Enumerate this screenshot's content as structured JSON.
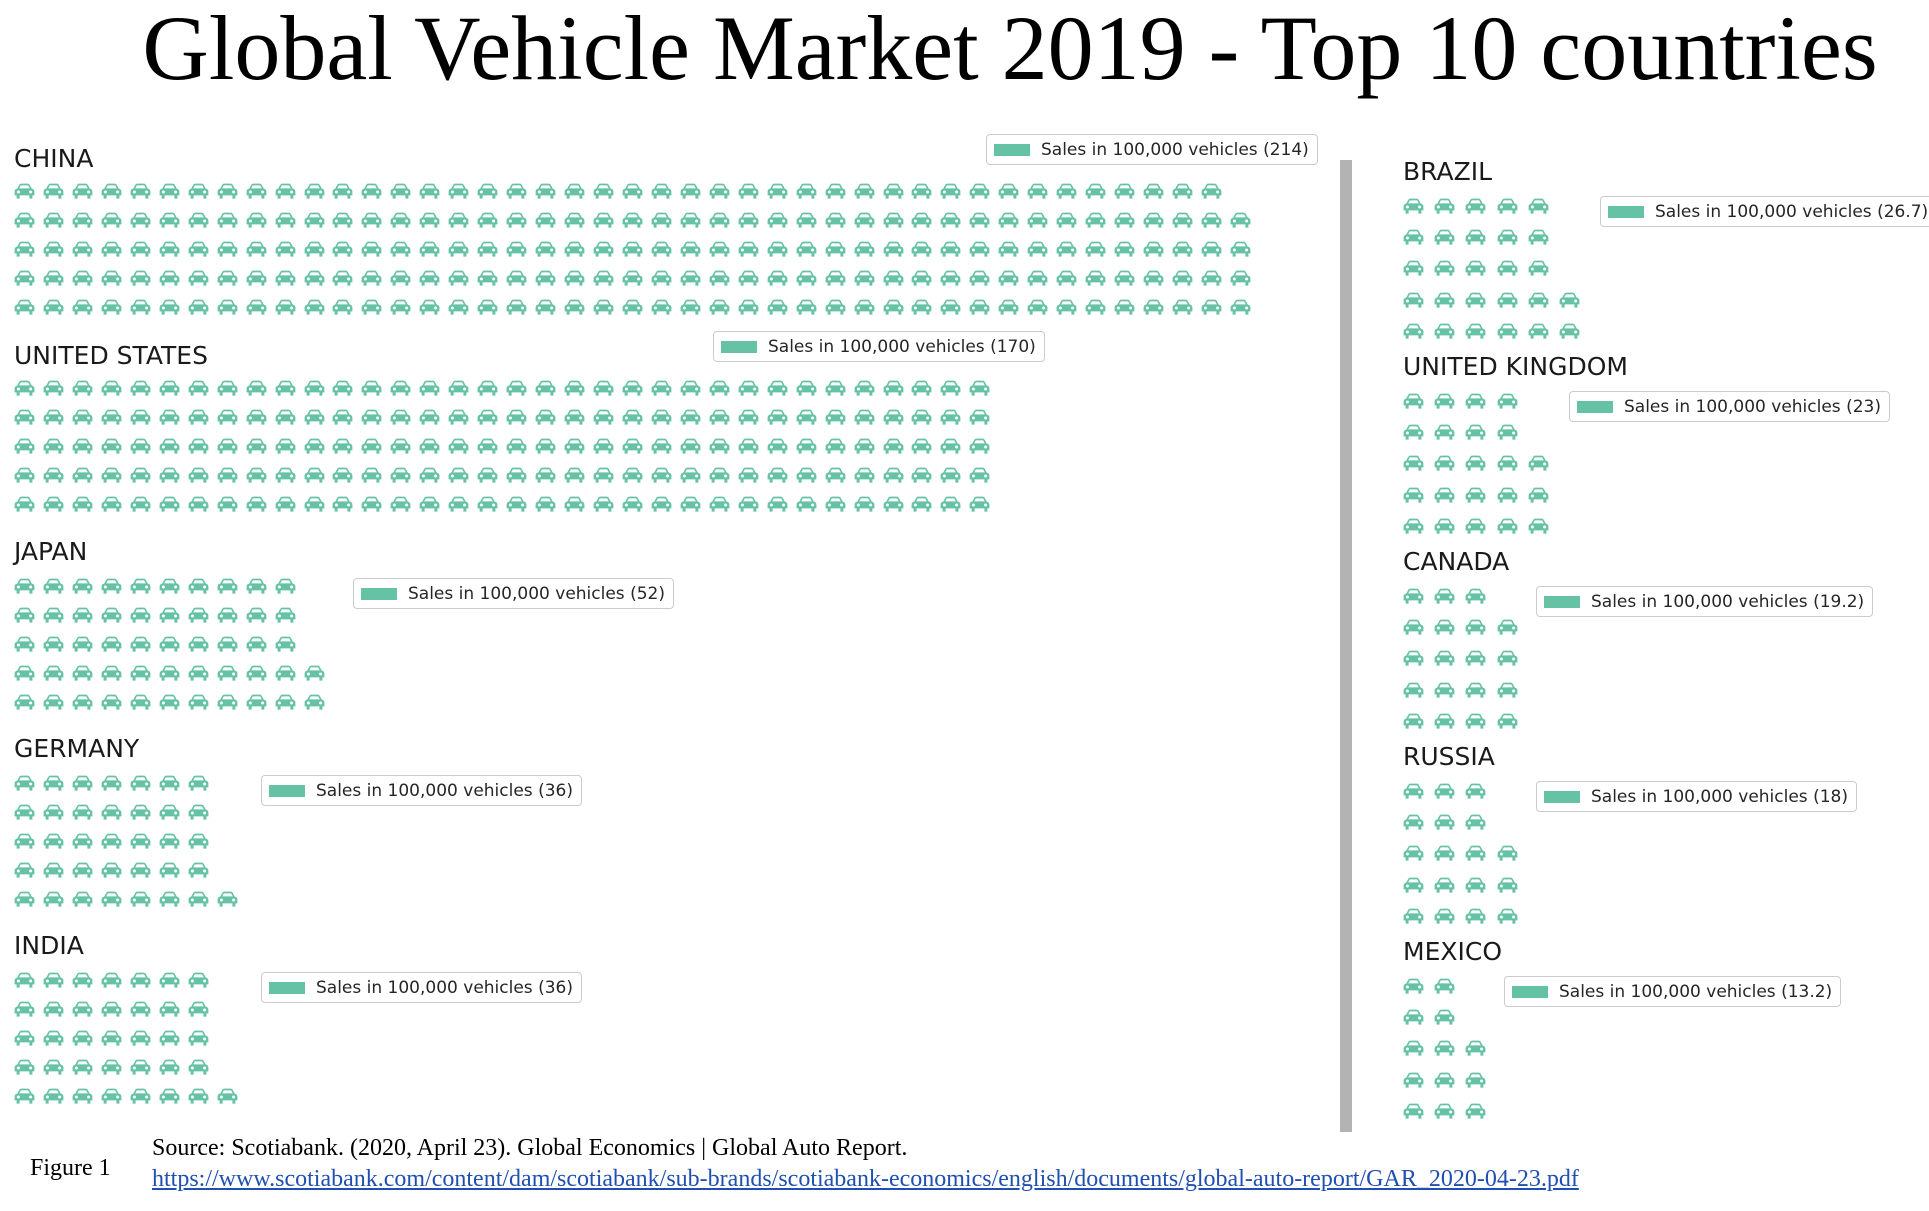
{
  "figure": {
    "title": "Global Vehicle Market 2019 - Top 10 countries",
    "label": "Figure 1",
    "source_text": "Source: Scotiabank. (2020, April 23). Global Economics | Global Auto Report.",
    "source_link": "https://www.scotiabank.com/content/dam/scotiabank/sub-brands/scotiabank-economics/english/documents/global-auto-report/GAR_2020-04-23.pdf"
  },
  "colors": {
    "icon": "#66c2a5",
    "divider": "#b3b3b3"
  },
  "icon": "car-icon",
  "chart_data": {
    "type": "waffle",
    "rows_per_country": 5,
    "series": [
      {
        "name": "CHINA",
        "value": 214,
        "legend": "Sales in 100,000 vehicles (214)"
      },
      {
        "name": "UNITED STATES",
        "value": 170,
        "legend": "Sales in 100,000 vehicles (170)"
      },
      {
        "name": "JAPAN",
        "value": 52,
        "legend": "Sales in 100,000 vehicles (52)"
      },
      {
        "name": "GERMANY",
        "value": 36,
        "legend": "Sales in 100,000 vehicles (36)"
      },
      {
        "name": "INDIA",
        "value": 36,
        "legend": "Sales in 100,000 vehicles (36)"
      },
      {
        "name": "BRAZIL",
        "value": 26.7,
        "legend": "Sales in 100,000 vehicles (26.7)"
      },
      {
        "name": "UNITED KINGDOM",
        "value": 23,
        "legend": "Sales in 100,000 vehicles (23)"
      },
      {
        "name": "CANADA",
        "value": 19.2,
        "legend": "Sales in 100,000 vehicles (19.2)"
      },
      {
        "name": "RUSSIA",
        "value": 18,
        "legend": "Sales in 100,000 vehicles (18)"
      },
      {
        "name": "MEXICO",
        "value": 13.2,
        "legend": "Sales in 100,000 vehicles (13.2)"
      }
    ]
  }
}
